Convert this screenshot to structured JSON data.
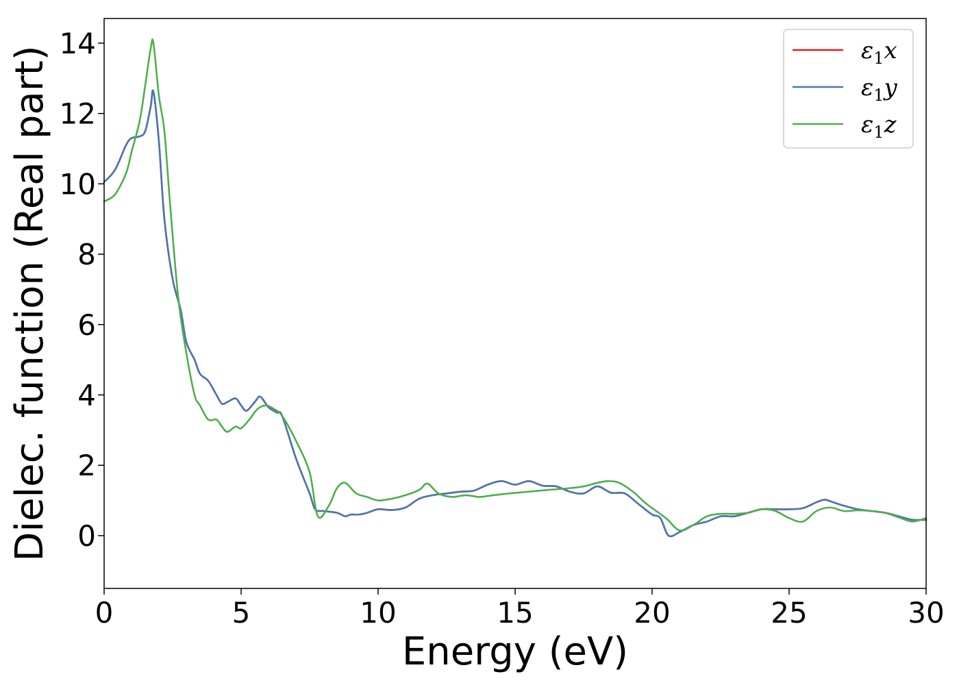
{
  "chart_data": {
    "type": "line",
    "title": "",
    "xlabel": "Energy (eV)",
    "ylabel": "Dielec. function (Real part)",
    "xlim": [
      0,
      30
    ],
    "ylim": [
      -1.5,
      14.7
    ],
    "xticks": [
      0,
      5,
      10,
      15,
      20,
      25,
      30
    ],
    "yticks": [
      0,
      2,
      4,
      6,
      8,
      10,
      12,
      14
    ],
    "grid": false,
    "legend_position": "top-right",
    "series": [
      {
        "name": "ε₁x",
        "legend_main": "ε",
        "legend_sub": "1",
        "legend_var": "x",
        "color": "#e41a1c",
        "x": [
          0,
          0.4,
          0.8,
          1.0,
          1.3,
          1.5,
          1.7,
          1.8,
          2.0,
          2.2,
          2.5,
          2.8,
          3.0,
          3.3,
          3.5,
          3.8,
          4.1,
          4.3,
          4.5,
          4.8,
          5.0,
          5.2,
          5.5,
          5.7,
          6.0,
          6.3,
          6.5,
          7.0,
          7.5,
          7.7,
          8.0,
          8.5,
          8.8,
          9.0,
          9.3,
          9.6,
          10.0,
          10.5,
          11.0,
          11.5,
          12.0,
          12.5,
          13.0,
          13.5,
          14.0,
          14.5,
          15.0,
          15.5,
          16.0,
          16.5,
          17.0,
          17.5,
          18.0,
          18.5,
          19.0,
          19.5,
          20.0,
          20.3,
          20.6,
          21.0,
          21.5,
          22.0,
          22.5,
          23.0,
          23.5,
          24.0,
          24.5,
          25.0,
          25.5,
          26.0,
          26.3,
          26.6,
          27.0,
          27.5,
          28.0,
          28.5,
          29.0,
          29.5,
          30.0
        ],
        "y": [
          10.05,
          10.4,
          11.1,
          11.3,
          11.35,
          11.5,
          12.2,
          12.62,
          11.2,
          9.0,
          7.3,
          6.4,
          5.5,
          5.0,
          4.6,
          4.4,
          4.0,
          3.75,
          3.8,
          3.9,
          3.7,
          3.55,
          3.8,
          3.95,
          3.65,
          3.5,
          3.4,
          2.2,
          1.2,
          0.75,
          0.7,
          0.65,
          0.55,
          0.6,
          0.6,
          0.65,
          0.75,
          0.73,
          0.8,
          1.05,
          1.15,
          1.2,
          1.25,
          1.28,
          1.45,
          1.55,
          1.45,
          1.55,
          1.42,
          1.4,
          1.25,
          1.2,
          1.4,
          1.22,
          1.2,
          0.9,
          0.6,
          0.5,
          0.0,
          0.1,
          0.3,
          0.4,
          0.55,
          0.55,
          0.65,
          0.75,
          0.75,
          0.75,
          0.78,
          0.95,
          1.02,
          0.95,
          0.85,
          0.75,
          0.7,
          0.65,
          0.55,
          0.45,
          0.45
        ]
      },
      {
        "name": "ε₁y",
        "legend_main": "ε",
        "legend_sub": "1",
        "legend_var": "y",
        "color": "#4a77b4",
        "x": [
          0,
          0.4,
          0.8,
          1.0,
          1.3,
          1.5,
          1.7,
          1.8,
          2.0,
          2.2,
          2.5,
          2.8,
          3.0,
          3.3,
          3.5,
          3.8,
          4.1,
          4.3,
          4.5,
          4.8,
          5.0,
          5.2,
          5.5,
          5.7,
          6.0,
          6.3,
          6.5,
          7.0,
          7.5,
          7.7,
          8.0,
          8.5,
          8.8,
          9.0,
          9.3,
          9.6,
          10.0,
          10.5,
          11.0,
          11.5,
          12.0,
          12.5,
          13.0,
          13.5,
          14.0,
          14.5,
          15.0,
          15.5,
          16.0,
          16.5,
          17.0,
          17.5,
          18.0,
          18.5,
          19.0,
          19.5,
          20.0,
          20.3,
          20.6,
          21.0,
          21.5,
          22.0,
          22.5,
          23.0,
          23.5,
          24.0,
          24.5,
          25.0,
          25.5,
          26.0,
          26.3,
          26.6,
          27.0,
          27.5,
          28.0,
          28.5,
          29.0,
          29.5,
          30.0
        ],
        "y": [
          10.05,
          10.4,
          11.1,
          11.3,
          11.35,
          11.5,
          12.2,
          12.62,
          11.2,
          9.0,
          7.3,
          6.4,
          5.5,
          5.0,
          4.6,
          4.4,
          4.0,
          3.75,
          3.8,
          3.9,
          3.7,
          3.55,
          3.8,
          3.95,
          3.65,
          3.5,
          3.4,
          2.2,
          1.2,
          0.75,
          0.7,
          0.65,
          0.55,
          0.6,
          0.6,
          0.65,
          0.75,
          0.73,
          0.8,
          1.05,
          1.15,
          1.2,
          1.25,
          1.28,
          1.45,
          1.55,
          1.45,
          1.55,
          1.42,
          1.4,
          1.25,
          1.2,
          1.4,
          1.22,
          1.2,
          0.9,
          0.6,
          0.5,
          0.0,
          0.1,
          0.3,
          0.4,
          0.55,
          0.55,
          0.65,
          0.75,
          0.75,
          0.75,
          0.78,
          0.95,
          1.02,
          0.95,
          0.85,
          0.75,
          0.7,
          0.65,
          0.55,
          0.45,
          0.45
        ]
      },
      {
        "name": "ε₁z",
        "legend_main": "ε",
        "legend_sub": "1",
        "legend_var": "z",
        "color": "#4daf4a",
        "x": [
          0,
          0.4,
          0.8,
          1.0,
          1.3,
          1.5,
          1.7,
          1.8,
          2.0,
          2.2,
          2.4,
          2.7,
          3.0,
          3.3,
          3.5,
          3.8,
          4.1,
          4.3,
          4.5,
          4.8,
          5.0,
          5.3,
          5.6,
          5.9,
          6.2,
          6.5,
          7.0,
          7.5,
          7.8,
          8.2,
          8.5,
          8.8,
          9.2,
          9.6,
          10.0,
          10.5,
          11.0,
          11.5,
          11.8,
          12.2,
          12.7,
          13.2,
          13.7,
          14.2,
          14.8,
          15.5,
          16.2,
          17.0,
          17.5,
          18.0,
          18.4,
          18.8,
          19.3,
          19.8,
          20.5,
          21.0,
          21.5,
          22.0,
          22.5,
          23.0,
          23.5,
          24.0,
          24.5,
          25.0,
          25.5,
          26.0,
          26.5,
          27.0,
          27.5,
          28.0,
          28.5,
          29.0,
          29.5,
          30.0
        ],
        "y": [
          9.5,
          9.7,
          10.3,
          10.9,
          11.8,
          12.8,
          13.85,
          14.0,
          12.5,
          11.5,
          9.5,
          6.8,
          5.2,
          4.0,
          3.7,
          3.3,
          3.3,
          3.1,
          2.95,
          3.1,
          3.05,
          3.3,
          3.6,
          3.7,
          3.6,
          3.4,
          2.7,
          1.8,
          0.55,
          0.85,
          1.35,
          1.5,
          1.2,
          1.1,
          1.0,
          1.05,
          1.15,
          1.3,
          1.48,
          1.2,
          1.1,
          1.15,
          1.1,
          1.15,
          1.2,
          1.25,
          1.3,
          1.35,
          1.4,
          1.5,
          1.55,
          1.5,
          1.25,
          0.9,
          0.5,
          0.15,
          0.3,
          0.55,
          0.62,
          0.62,
          0.65,
          0.75,
          0.7,
          0.5,
          0.4,
          0.7,
          0.8,
          0.7,
          0.72,
          0.7,
          0.65,
          0.52,
          0.4,
          0.5
        ]
      }
    ]
  }
}
